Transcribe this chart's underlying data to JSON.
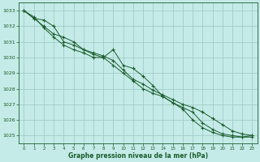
{
  "background_color": "#c5ebe8",
  "grid_color": "#a0ccc8",
  "line_color": "#1a5c2a",
  "xlabel": "Graphe pression niveau de la mer (hPa)",
  "xlabel_color": "#1a5c2a",
  "ylabel_color": "#1a5c2a",
  "xlim": [
    -0.5,
    23.5
  ],
  "ylim": [
    1024.5,
    1033.5
  ],
  "yticks": [
    1025,
    1026,
    1027,
    1028,
    1029,
    1030,
    1031,
    1032,
    1033
  ],
  "xticks": [
    0,
    1,
    2,
    3,
    4,
    5,
    6,
    7,
    8,
    9,
    10,
    11,
    12,
    13,
    14,
    15,
    16,
    17,
    18,
    19,
    20,
    21,
    22,
    23
  ],
  "series": [
    [
      1033.0,
      1032.5,
      1032.4,
      1032.0,
      1031.0,
      1030.8,
      1030.5,
      1030.2,
      1030.0,
      1030.5,
      1029.5,
      1029.3,
      1028.8,
      1028.2,
      1027.5,
      1027.1,
      1026.8,
      1026.5,
      1025.8,
      1025.4,
      1025.1,
      1025.0,
      1024.9,
      1024.9
    ],
    [
      1033.0,
      1032.6,
      1031.9,
      1031.3,
      1030.8,
      1030.5,
      1030.3,
      1030.0,
      1030.0,
      1029.5,
      1029.0,
      1028.5,
      1028.0,
      1027.7,
      1027.5,
      1027.1,
      1026.7,
      1026.0,
      1025.5,
      1025.2,
      1025.0,
      1024.9,
      1024.9,
      1025.0
    ],
    [
      1033.0,
      1032.5,
      1032.0,
      1031.5,
      1031.3,
      1031.0,
      1030.5,
      1030.3,
      1030.1,
      1029.8,
      1029.2,
      1028.6,
      1028.3,
      1027.9,
      1027.6,
      1027.3,
      1027.0,
      1026.8,
      1026.5,
      1026.1,
      1025.7,
      1025.3,
      1025.1,
      1025.0
    ]
  ],
  "figsize": [
    3.2,
    2.0
  ],
  "dpi": 100
}
